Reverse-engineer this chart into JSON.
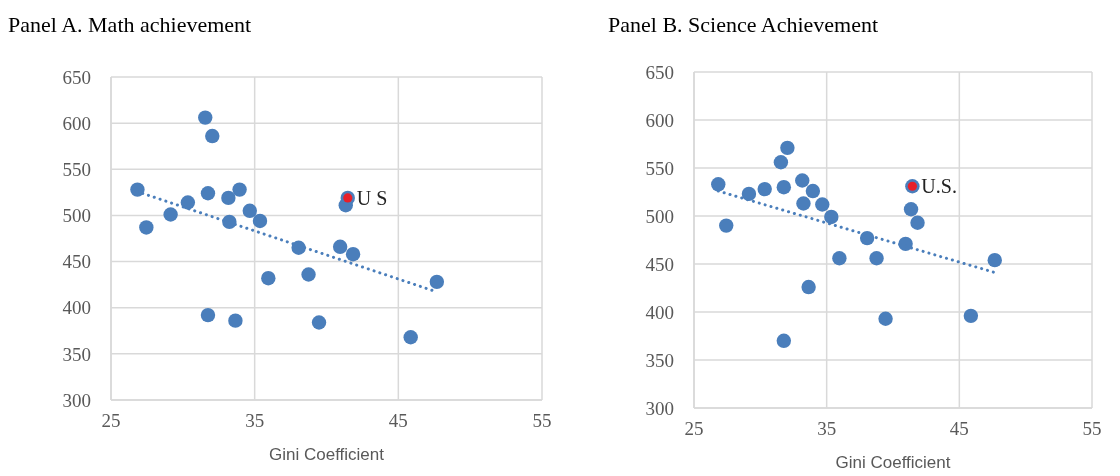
{
  "chart_data": [
    {
      "type": "scatter",
      "title": "Panel A. Math achievement",
      "xlabel": "Gini Coefficient",
      "xlim": [
        25,
        55
      ],
      "xticks": [
        25,
        35,
        45,
        55
      ],
      "ylim": [
        300,
        650
      ],
      "yticks": [
        300,
        350,
        400,
        450,
        500,
        550,
        600,
        650
      ],
      "grid": true,
      "marker": "circle",
      "series": [
        {
          "color": "#4a7ebb",
          "x": [
            26.84,
            27.46,
            29.15,
            30.35,
            31.56,
            32.05,
            31.75,
            33.17,
            33.95,
            33.24,
            34.66,
            35.37,
            35.95,
            38.06,
            38.75,
            40.95,
            41.85,
            41.34,
            41.48,
            47.68,
            31.75,
            33.66,
            39.48,
            45.86
          ],
          "values": [
            528,
            487,
            501,
            514,
            606,
            586,
            524,
            519,
            528,
            493,
            505,
            494,
            432,
            465,
            436,
            466,
            458,
            511,
            519,
            428,
            392,
            386,
            384,
            368
          ]
        },
        {
          "type": "scatter",
          "color": "#e8202a",
          "x": [
            41.48
          ],
          "values": [
            519
          ]
        },
        {
          "type": "line",
          "line_style": "dotted",
          "marker": "none",
          "color": "#4a7ebb",
          "x": [
            26.8,
            47.7
          ],
          "values": [
            526,
            417
          ]
        }
      ],
      "annotations": [
        {
          "text": "U S",
          "x": 41.48,
          "y": 519
        }
      ]
    },
    {
      "type": "scatter",
      "title": "Panel B. Science Achievement",
      "xlabel": "Gini Coefficient",
      "xlim": [
        25,
        55
      ],
      "xticks": [
        25,
        35,
        45,
        55
      ],
      "ylim": [
        300,
        650
      ],
      "yticks": [
        300,
        350,
        400,
        450,
        500,
        550,
        600,
        650
      ],
      "grid": true,
      "marker": "circle",
      "series": [
        {
          "color": "#4a7ebb",
          "x": [
            26.83,
            27.43,
            29.14,
            30.33,
            31.55,
            32.04,
            31.77,
            33.16,
            33.96,
            33.25,
            34.67,
            35.35,
            35.96,
            38.05,
            38.76,
            40.95,
            41.36,
            41.85,
            41.46,
            47.67,
            33.64,
            31.77,
            39.44,
            45.87
          ],
          "values": [
            533,
            490,
            523,
            528,
            556,
            571,
            530,
            537,
            526,
            513,
            512,
            499,
            456,
            477,
            456,
            471,
            507,
            493,
            531,
            454,
            426,
            370,
            393,
            396
          ]
        },
        {
          "type": "scatter",
          "color": "#e8202a",
          "x": [
            41.46
          ],
          "values": [
            531
          ]
        },
        {
          "type": "line",
          "line_style": "dotted",
          "marker": "none",
          "color": "#4a7ebb",
          "x": [
            26.83,
            47.7
          ],
          "values": [
            526,
            441
          ]
        }
      ],
      "annotations": [
        {
          "text": "U.S.",
          "x": 41.46,
          "y": 531
        }
      ]
    }
  ]
}
